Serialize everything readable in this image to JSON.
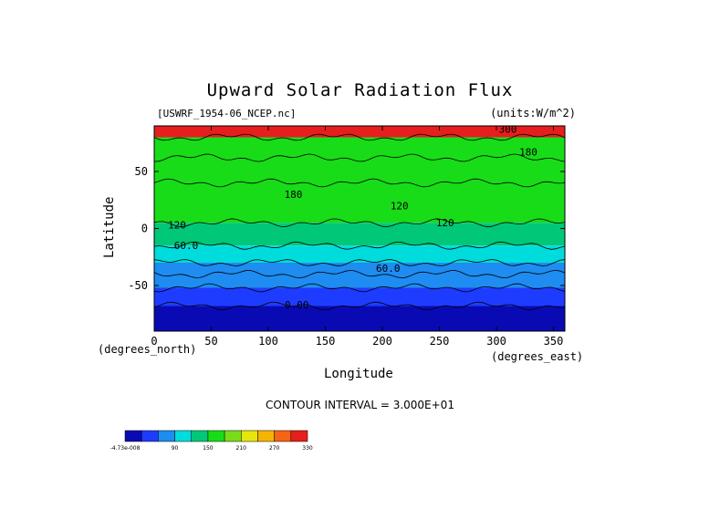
{
  "header": {
    "title": "Upward Solar Radiation Flux",
    "file_label": "[USWRF_1954-06_NCEP.nc]",
    "units_label": "(units:W/m^2)"
  },
  "footer": {
    "contour_interval": "CONTOUR INTERVAL = 3.000E+01"
  },
  "colors": {
    "levels": [
      "#0a0ab4",
      "#1e3cff",
      "#1e8cf0",
      "#00dcdc",
      "#00c878",
      "#18dc18",
      "#78dc18",
      "#e6e60a",
      "#f5b400",
      "#f56414",
      "#e61e1e"
    ]
  },
  "chart_data": {
    "type": "heatmap",
    "title": "Upward Solar Radiation Flux",
    "xlabel": "Longitude",
    "ylabel": "Latitude",
    "x_unit_label": "(degrees_east)",
    "y_unit_label": "(degrees_north)",
    "xlim": [
      0,
      360
    ],
    "ylim": [
      -90,
      90
    ],
    "x_ticks": [
      0,
      50,
      100,
      150,
      200,
      250,
      300,
      350
    ],
    "y_ticks": [
      50,
      0,
      -50
    ],
    "colorbar": {
      "tick_labels": [
        "-4.73e-008",
        "90",
        "150",
        "210",
        "270",
        "330"
      ],
      "levels": [
        0,
        30,
        60,
        90,
        120,
        150,
        180,
        210,
        240,
        270,
        300,
        330
      ]
    },
    "bands": [
      {
        "lat_top": 90,
        "lat_bottom": 80,
        "value": 300
      },
      {
        "lat_top": 80,
        "lat_bottom": 62,
        "value": 150
      },
      {
        "lat_top": 62,
        "lat_bottom": 40,
        "value": 150
      },
      {
        "lat_top": 40,
        "lat_bottom": 5,
        "value": 150
      },
      {
        "lat_top": 5,
        "lat_bottom": -15,
        "value": 120
      },
      {
        "lat_top": -15,
        "lat_bottom": -30,
        "value": 90
      },
      {
        "lat_top": -30,
        "lat_bottom": -40,
        "value": 60
      },
      {
        "lat_top": -40,
        "lat_bottom": -52,
        "value": 60
      },
      {
        "lat_top": -52,
        "lat_bottom": -68,
        "value": 30
      },
      {
        "lat_top": -68,
        "lat_bottom": -90,
        "value": 0
      }
    ],
    "contour_labels": [
      {
        "text": "300",
        "lon": 310,
        "lat": 84
      },
      {
        "text": "180",
        "lon": 328,
        "lat": 64
      },
      {
        "text": "180",
        "lon": 122,
        "lat": 27
      },
      {
        "text": "120",
        "lon": 215,
        "lat": 17
      },
      {
        "text": "120",
        "lon": 255,
        "lat": 2
      },
      {
        "text": "120",
        "lon": 20,
        "lat": 0
      },
      {
        "text": "60.0",
        "lon": 28,
        "lat": -18
      },
      {
        "text": "60.0",
        "lon": 205,
        "lat": -38
      },
      {
        "text": "0.00",
        "lon": 125,
        "lat": -70
      }
    ]
  }
}
